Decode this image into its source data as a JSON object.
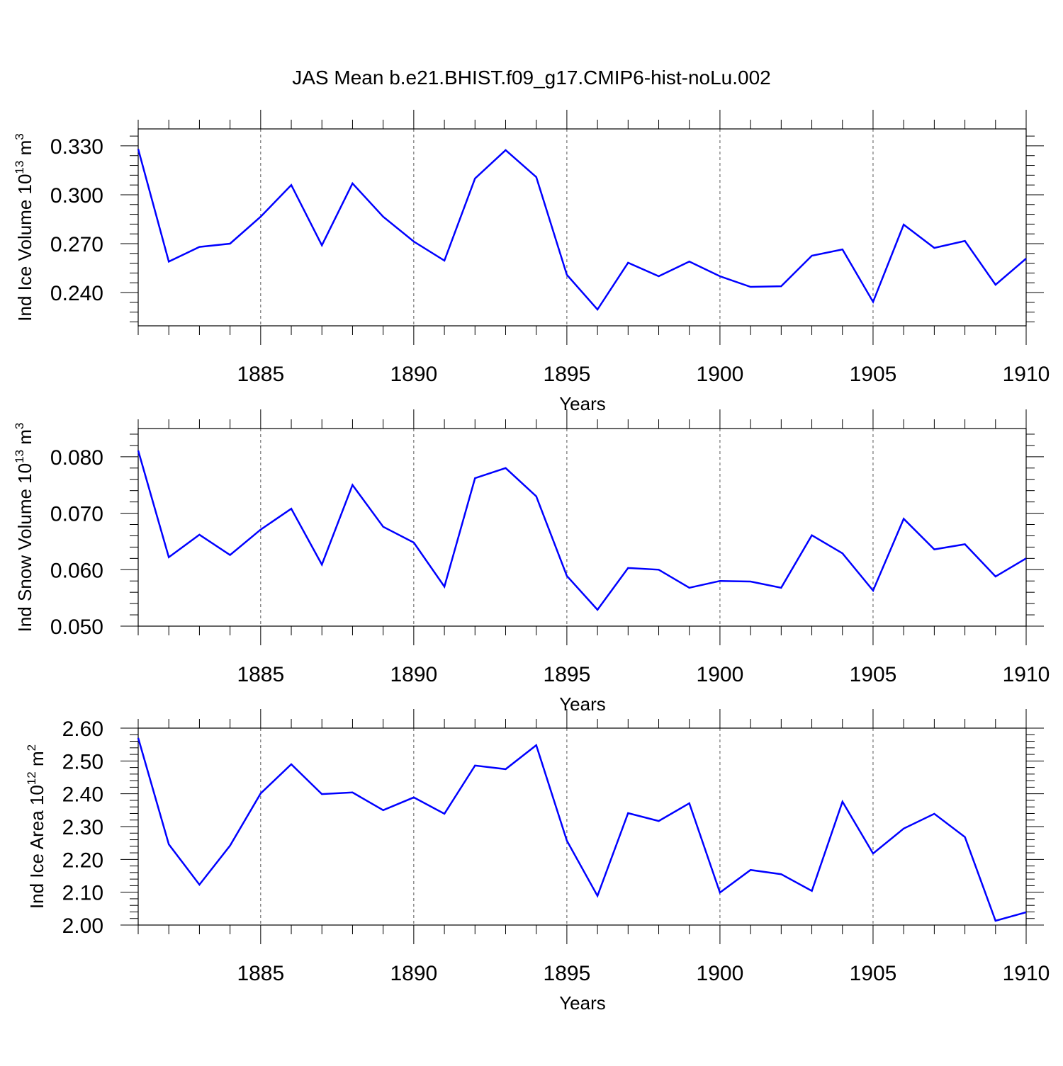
{
  "title": "JAS Mean b.e21.BHIST.f09_g17.CMIP6-hist-noLu.002",
  "colors": {
    "line": "#0000ff",
    "axis": "#000000",
    "grid": "#555555"
  },
  "chart_data": [
    {
      "type": "line",
      "ylabel": {
        "main": "Ind Ice Volume 10",
        "exp": "13",
        "unit": " m",
        "unit_exp": "3"
      },
      "xlabel": "Years",
      "xlim": [
        1881,
        1910
      ],
      "ylim": [
        0.2196,
        0.3404
      ],
      "xticks": [
        1885,
        1890,
        1895,
        1900,
        1905,
        1910
      ],
      "yticks": [
        0.24,
        0.27,
        0.3,
        0.33
      ],
      "ytick_labels": [
        "0.240",
        "0.270",
        "0.300",
        "0.330"
      ],
      "yminor": 0.006,
      "grid": "vertical dashed at major x ticks",
      "x": [
        1881,
        1882,
        1883,
        1884,
        1885,
        1886,
        1887,
        1888,
        1889,
        1890,
        1891,
        1892,
        1893,
        1894,
        1895,
        1896,
        1897,
        1898,
        1899,
        1900,
        1901,
        1902,
        1903,
        1904,
        1905,
        1906,
        1907,
        1908,
        1909,
        1910
      ],
      "values": [
        0.328,
        0.259,
        0.268,
        0.27,
        0.2865,
        0.306,
        0.269,
        0.307,
        0.2865,
        0.2713,
        0.2596,
        0.31,
        0.3274,
        0.3109,
        0.2509,
        0.2296,
        0.2583,
        0.25,
        0.259,
        0.25,
        0.2435,
        0.2439,
        0.2626,
        0.2665,
        0.2343,
        0.2817,
        0.2674,
        0.2717,
        0.2448,
        0.2609
      ]
    },
    {
      "type": "line",
      "ylabel": {
        "main": "Ind Snow Volume 10",
        "exp": "13",
        "unit": " m",
        "unit_exp": "3"
      },
      "xlabel": "Years",
      "xlim": [
        1881,
        1910
      ],
      "ylim": [
        0.05,
        0.085
      ],
      "xticks": [
        1885,
        1890,
        1895,
        1900,
        1905,
        1910
      ],
      "yticks": [
        0.05,
        0.06,
        0.07,
        0.08
      ],
      "ytick_labels": [
        "0.050",
        "0.060",
        "0.070",
        "0.080"
      ],
      "yminor": 0.002,
      "grid": "vertical dashed at major x ticks",
      "x": [
        1881,
        1882,
        1883,
        1884,
        1885,
        1886,
        1887,
        1888,
        1889,
        1890,
        1891,
        1892,
        1893,
        1894,
        1895,
        1896,
        1897,
        1898,
        1899,
        1900,
        1901,
        1902,
        1903,
        1904,
        1905,
        1906,
        1907,
        1908,
        1909,
        1910
      ],
      "values": [
        0.0811,
        0.0622,
        0.0662,
        0.0626,
        0.0671,
        0.0708,
        0.0609,
        0.075,
        0.0676,
        0.0648,
        0.057,
        0.0762,
        0.078,
        0.073,
        0.0589,
        0.0529,
        0.0603,
        0.06,
        0.0568,
        0.058,
        0.0579,
        0.0568,
        0.0661,
        0.0629,
        0.0563,
        0.069,
        0.0636,
        0.0645,
        0.0588,
        0.062
      ]
    },
    {
      "type": "line",
      "ylabel": {
        "main": "Ind Ice Area 10",
        "exp": "12",
        "unit": " m",
        "unit_exp": "2"
      },
      "xlabel": "Years",
      "xlim": [
        1881,
        1910
      ],
      "ylim": [
        2.0,
        2.6
      ],
      "xticks": [
        1885,
        1890,
        1895,
        1900,
        1905,
        1910
      ],
      "yticks": [
        2.0,
        2.1,
        2.2,
        2.3,
        2.4,
        2.5,
        2.6
      ],
      "ytick_labels": [
        "2.00",
        "2.10",
        "2.20",
        "2.30",
        "2.40",
        "2.50",
        "2.60"
      ],
      "yminor": 0.02,
      "grid": "vertical dashed at major x ticks",
      "x": [
        1881,
        1882,
        1883,
        1884,
        1885,
        1886,
        1887,
        1888,
        1889,
        1890,
        1891,
        1892,
        1893,
        1894,
        1895,
        1896,
        1897,
        1898,
        1899,
        1900,
        1901,
        1902,
        1903,
        1904,
        1905,
        1906,
        1907,
        1908,
        1909,
        1910
      ],
      "values": [
        2.57,
        2.246,
        2.123,
        2.242,
        2.401,
        2.49,
        2.399,
        2.404,
        2.35,
        2.389,
        2.339,
        2.486,
        2.475,
        2.548,
        2.257,
        2.089,
        2.341,
        2.317,
        2.371,
        2.099,
        2.168,
        2.155,
        2.104,
        2.376,
        2.218,
        2.294,
        2.339,
        2.268,
        2.013,
        2.039
      ]
    }
  ]
}
